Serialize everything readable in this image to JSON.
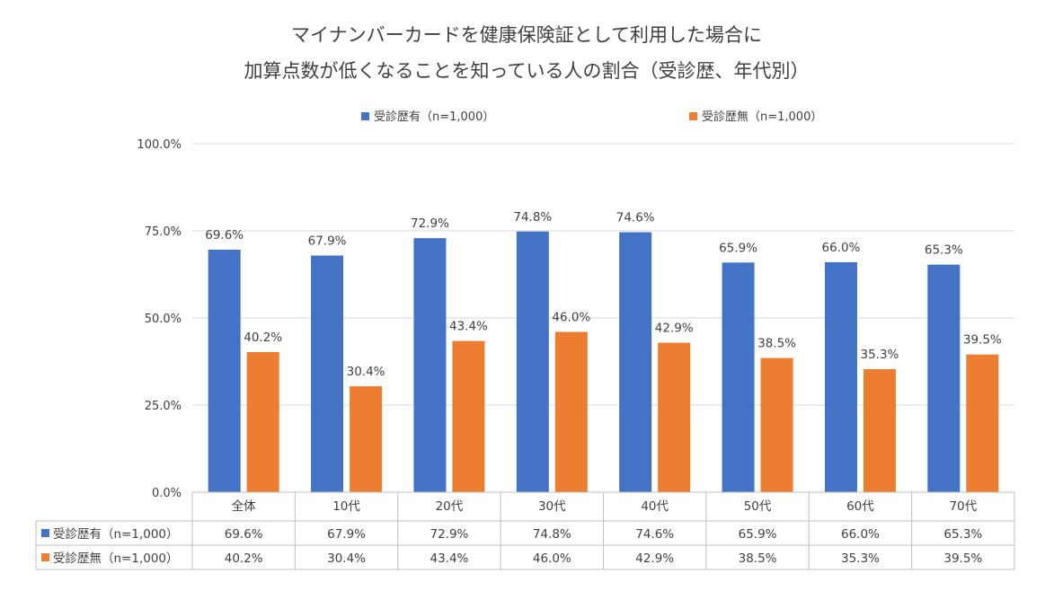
{
  "chart_data": {
    "type": "bar",
    "title": [
      "マイナンバーカードを健康保険証として利用した場合に",
      "加算点数が低くなることを知っている人の割合（受診歴、年代別）"
    ],
    "categories": [
      "全体",
      "10代",
      "20代",
      "30代",
      "40代",
      "50代",
      "60代",
      "70代"
    ],
    "series": [
      {
        "name": "受診歴有（n=1,000）",
        "color": "#4472C4",
        "values": [
          69.6,
          67.9,
          72.9,
          74.8,
          74.6,
          65.9,
          66.0,
          65.3
        ],
        "labels": [
          "69.6%",
          "67.9%",
          "72.9%",
          "74.8%",
          "74.6%",
          "65.9%",
          "66.0%",
          "65.3%"
        ]
      },
      {
        "name": "受診歴無（n=1,000）",
        "color": "#ED7D31",
        "values": [
          40.2,
          30.4,
          43.4,
          46.0,
          42.9,
          38.5,
          35.3,
          39.5
        ],
        "labels": [
          "40.2%",
          "30.4%",
          "43.4%",
          "46.0%",
          "42.9%",
          "38.5%",
          "35.3%",
          "39.5%"
        ]
      }
    ],
    "yticks": [
      "0.0%",
      "25.0%",
      "50.0%",
      "75.0%",
      "100.0%"
    ],
    "ylim": [
      0,
      100
    ],
    "legend_position": "top",
    "grid": true,
    "data_table": true
  }
}
